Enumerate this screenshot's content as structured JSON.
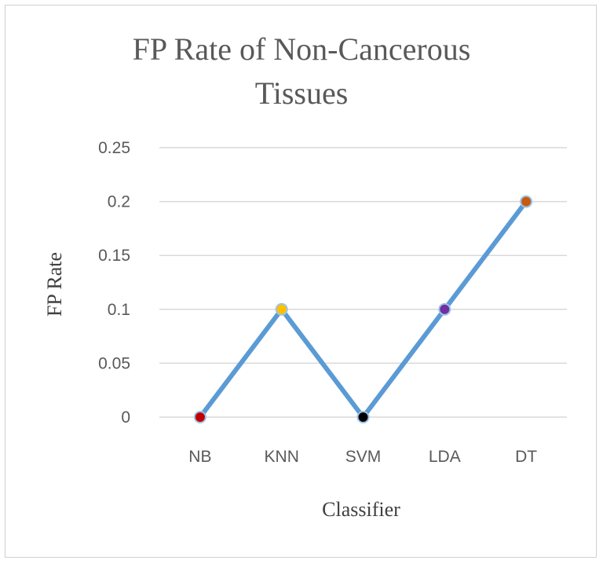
{
  "chart_data": {
    "type": "line",
    "title": "FP Rate of Non-Cancerous Tissues",
    "title_lines": [
      "FP Rate of Non-Cancerous",
      "Tissues"
    ],
    "xlabel": "Classifier",
    "ylabel": "FP Rate",
    "categories": [
      "NB",
      "KNN",
      "SVM",
      "LDA",
      "DT"
    ],
    "series": [
      {
        "values": [
          0,
          0.1,
          0,
          0.1,
          0.2
        ],
        "line_color": "#5b9bd5",
        "marker_colors": [
          "#c00000",
          "#ffc000",
          "#000000",
          "#7030a0",
          "#c55a11"
        ]
      }
    ],
    "ylim": [
      0,
      0.25
    ],
    "y_ticks": [
      0,
      0.05,
      0.1,
      0.15,
      0.2,
      0.25
    ],
    "y_tick_labels": [
      "0",
      "0.05",
      "0.1",
      "0.15",
      "0.2",
      "0.25"
    ],
    "grid": true,
    "legend": "none"
  }
}
